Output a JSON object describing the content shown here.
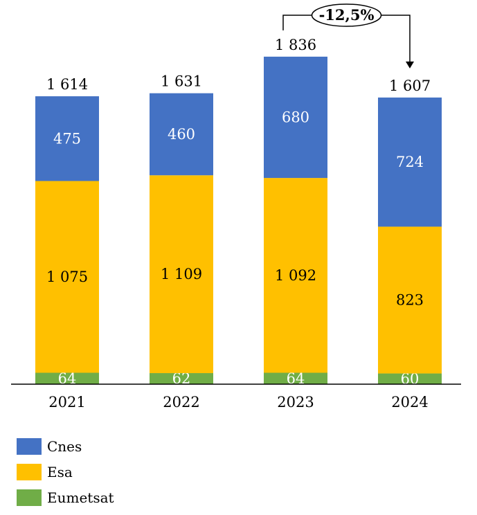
{
  "chart_data": {
    "type": "bar",
    "stacked": true,
    "categories": [
      "2021",
      "2022",
      "2023",
      "2024"
    ],
    "series": [
      {
        "name": "Eumetsat",
        "color": "#70AD47",
        "label_color": "#ffffff",
        "values": [
          64,
          62,
          64,
          60
        ]
      },
      {
        "name": "Esa",
        "color": "#FFC000",
        "label_color": "#000000",
        "values": [
          1075,
          1109,
          1092,
          823
        ]
      },
      {
        "name": "Cnes",
        "color": "#4472C4",
        "label_color": "#ffffff",
        "values": [
          475,
          460,
          680,
          724
        ]
      }
    ],
    "totals": [
      "1 614",
      "1 631",
      "1 836",
      "1 607"
    ],
    "value_labels": [
      [
        "64",
        "62",
        "64",
        "60"
      ],
      [
        "1 075",
        "1 109",
        "1 092",
        "823"
      ],
      [
        "475",
        "460",
        "680",
        "724"
      ]
    ],
    "annotation": {
      "text": "-12,5%",
      "from": "2023",
      "to": "2024"
    },
    "ylim": [
      0,
      1900
    ],
    "legend_position": "bottom-left",
    "legend_order": [
      "Cnes",
      "Esa",
      "Eumetsat"
    ]
  }
}
